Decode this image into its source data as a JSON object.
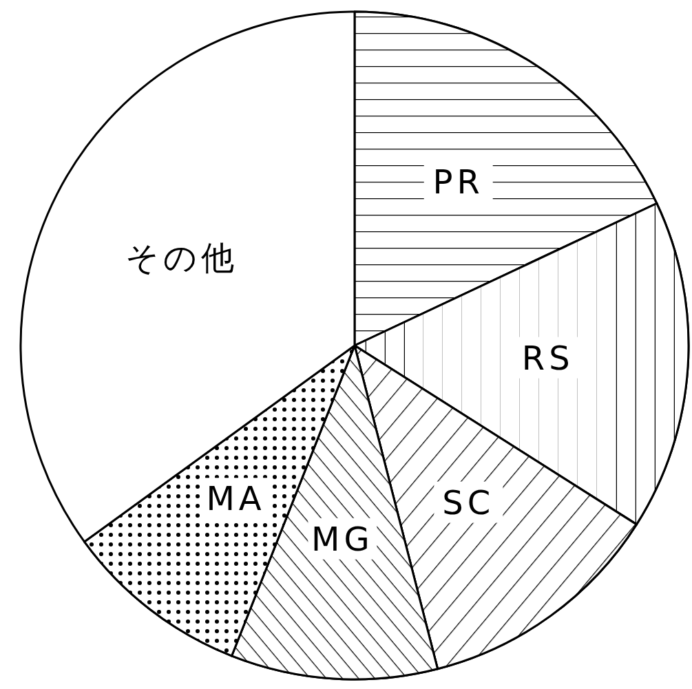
{
  "chart_data": {
    "type": "pie",
    "categories": [
      "PR",
      "RS",
      "SC",
      "MG",
      "MA",
      "その他"
    ],
    "values": [
      18,
      16,
      12,
      10,
      9,
      35
    ],
    "colors": [
      "#ffffff",
      "#ffffff",
      "#ffffff",
      "#ffffff",
      "#ffffff",
      "#ffffff"
    ]
  }
}
